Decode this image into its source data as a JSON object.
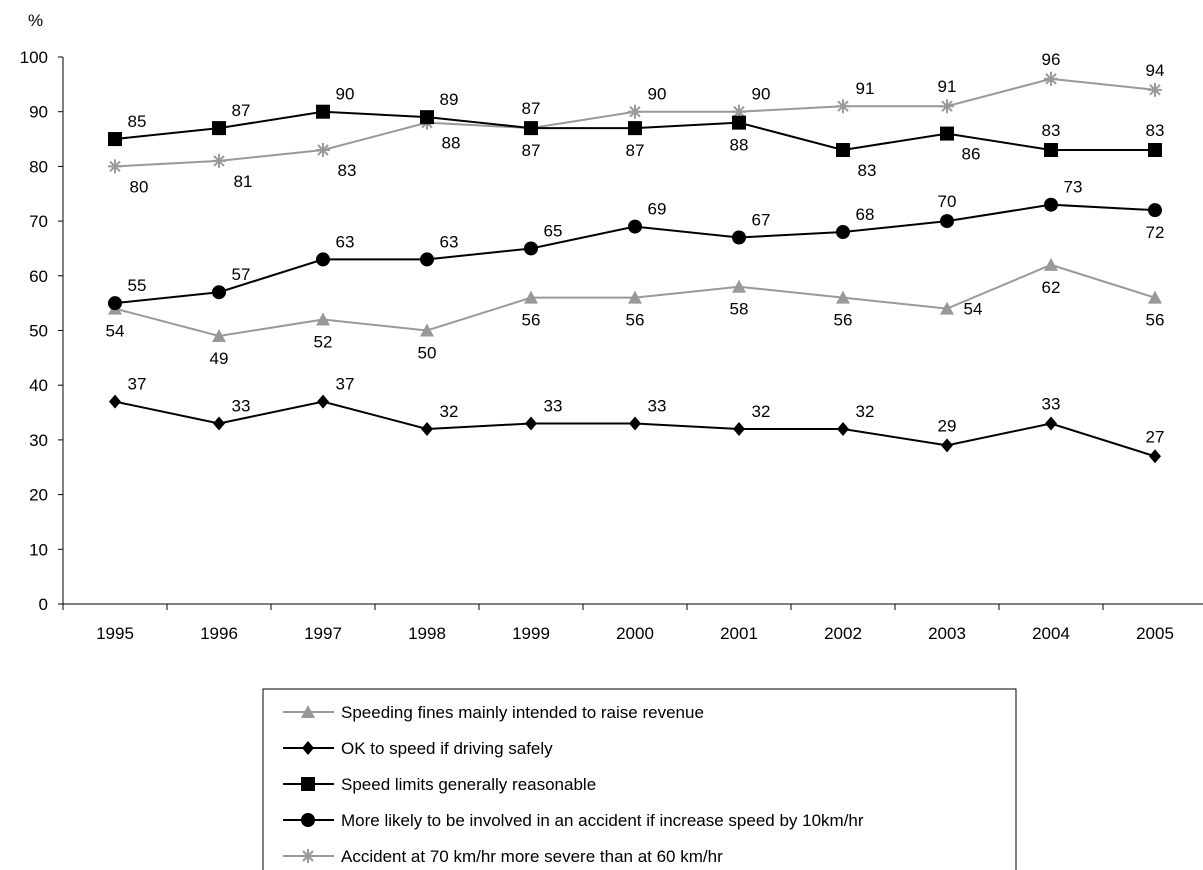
{
  "chart_data": {
    "type": "line",
    "ylabel": "%",
    "ylim": [
      0,
      100
    ],
    "yticks": [
      0,
      10,
      20,
      30,
      40,
      50,
      60,
      70,
      80,
      90,
      100
    ],
    "categories": [
      "1995",
      "1996",
      "1997",
      "1998",
      "1999",
      "2000",
      "2001",
      "2002",
      "2003",
      "2004",
      "2005"
    ],
    "grid": false,
    "legend_position": "bottom",
    "series": [
      {
        "name": "Speeding fines mainly intended to raise revenue",
        "values": [
          54,
          49,
          52,
          50,
          56,
          56,
          58,
          56,
          54,
          62,
          56
        ],
        "color": "#999999",
        "marker": "triangle",
        "label_pos": [
          "below",
          "below",
          "below",
          "below",
          "below",
          "below",
          "below",
          "below",
          "right",
          "below",
          "below"
        ]
      },
      {
        "name": "OK to speed if driving safely",
        "values": [
          37,
          33,
          37,
          32,
          33,
          33,
          32,
          32,
          29,
          33,
          27
        ],
        "color": "#000000",
        "marker": "diamond",
        "label_pos": [
          "above-right",
          "above-right",
          "above-right",
          "above-right",
          "above-right",
          "above-right",
          "above-right",
          "above-right",
          "above",
          "above",
          "above"
        ]
      },
      {
        "name": "Speed limits generally reasonable",
        "values": [
          85,
          87,
          90,
          89,
          87,
          87,
          88,
          83,
          86,
          83,
          83
        ],
        "color": "#000000",
        "marker": "square",
        "label_pos": [
          "above-right",
          "above-right",
          "above-right",
          "above-right",
          "above",
          "below",
          "below",
          "below-right",
          "below-right",
          "above",
          "above"
        ]
      },
      {
        "name": "More likely to be involved in an accident if increase speed by 10km/hr",
        "values": [
          55,
          57,
          63,
          63,
          65,
          69,
          67,
          68,
          70,
          73,
          72
        ],
        "color": "#000000",
        "marker": "circle",
        "label_pos": [
          "above-right",
          "above-right",
          "above-right",
          "above-right",
          "above-right",
          "above-right",
          "above-right",
          "above-right",
          "above",
          "above-right",
          "below"
        ]
      },
      {
        "name": "Accident at 70 km/hr more severe than at 60 km/hr",
        "values": [
          80,
          81,
          83,
          88,
          87,
          90,
          90,
          91,
          91,
          96,
          94
        ],
        "color": "#999999",
        "marker": "asterisk",
        "label_pos": [
          "below-right",
          "below-right",
          "below-right",
          "below-right",
          "below",
          "above-right",
          "above-right",
          "above-right",
          "above",
          "above",
          "above"
        ]
      }
    ]
  }
}
